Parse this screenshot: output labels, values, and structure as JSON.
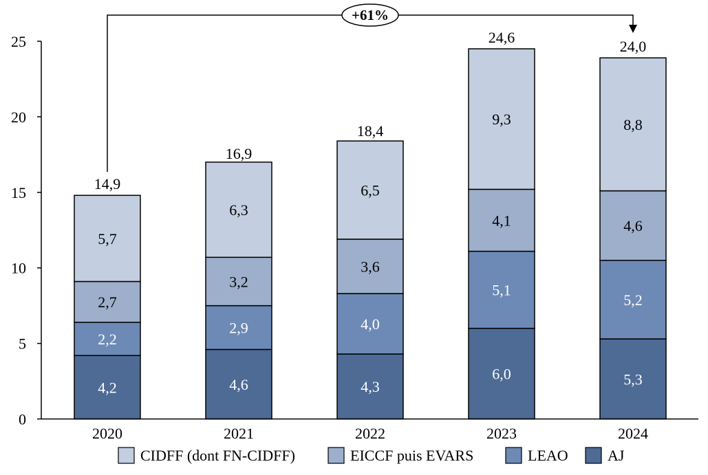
{
  "chart_data": {
    "type": "bar",
    "stacked": true,
    "categories": [
      "2020",
      "2021",
      "2022",
      "2023",
      "2024"
    ],
    "ylim": [
      0,
      25
    ],
    "yticks": [
      0,
      5,
      10,
      15,
      20,
      25
    ],
    "series": [
      {
        "name": "AJ",
        "values": [
          4.2,
          4.6,
          4.3,
          6.0,
          5.3
        ],
        "labels": [
          "4,2",
          "4,6",
          "4,3",
          "6,0",
          "5,3"
        ],
        "color": "#4e6b96",
        "label_color": "#ffffff"
      },
      {
        "name": "LEAO",
        "values": [
          2.2,
          2.9,
          4.0,
          5.1,
          5.2
        ],
        "labels": [
          "2,2",
          "2,9",
          "4,0",
          "5,1",
          "5,2"
        ],
        "color": "#6d8ab6",
        "label_color": "#ffffff"
      },
      {
        "name": "EICCF puis EVARS",
        "values": [
          2.7,
          3.2,
          3.6,
          4.1,
          4.6
        ],
        "labels": [
          "2,7",
          "3,2",
          "3,6",
          "4,1",
          "4,6"
        ],
        "color": "#9dafcb",
        "label_color": "#000000"
      },
      {
        "name": "CIDFF (dont FN-CIDFF)",
        "values": [
          5.7,
          6.3,
          6.5,
          9.3,
          8.8
        ],
        "labels": [
          "5,7",
          "6,3",
          "6,5",
          "9,3",
          "8,8"
        ],
        "color": "#c3cee0",
        "label_color": "#000000"
      }
    ],
    "totals": [
      14.9,
      16.9,
      18.4,
      24.6,
      24.0
    ],
    "total_labels": [
      "14,9",
      "16,9",
      "18,4",
      "24,6",
      "24,0"
    ],
    "annotation": {
      "text": "+61%",
      "from": "2020",
      "to": "2024"
    },
    "legend_order": [
      "CIDFF (dont FN-CIDFF)",
      "EICCF puis EVARS",
      "LEAO",
      "AJ"
    ],
    "legend_position": "bottom",
    "grid": false
  }
}
